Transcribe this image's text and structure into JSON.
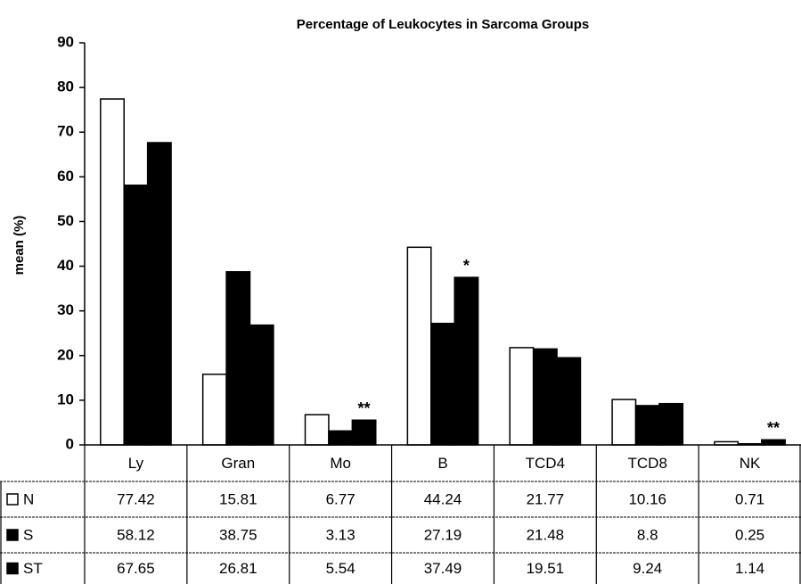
{
  "chart_data": {
    "type": "bar",
    "title": "Percentage of Leukocytes in Sarcoma Groups",
    "y_label": "mean (%)",
    "categories": [
      "Ly",
      "Gran",
      "Mo",
      "B",
      "TCD4",
      "TCD8",
      "NK"
    ],
    "series": [
      {
        "name": "N",
        "color": "#ffffff",
        "values": [
          77.42,
          15.81,
          6.77,
          44.24,
          21.77,
          10.16,
          0.71
        ]
      },
      {
        "name": "S",
        "color": "#000000",
        "values": [
          58.12,
          38.75,
          3.13,
          27.19,
          21.48,
          8.8,
          0.25
        ]
      },
      {
        "name": "ST",
        "color": "#000000",
        "values": [
          67.65,
          26.81,
          5.54,
          37.49,
          19.51,
          9.24,
          1.14
        ]
      }
    ],
    "annotations": [
      {
        "label": "**",
        "category": "Mo",
        "series": "ST"
      },
      {
        "label": "*",
        "category": "B",
        "series": "ST"
      },
      {
        "label": "**",
        "category": "NK",
        "series": "ST"
      }
    ],
    "ylim": [
      0,
      90
    ],
    "yticks": [
      0,
      10,
      20,
      30,
      40,
      50,
      60,
      70,
      80,
      90
    ],
    "grid": false
  }
}
